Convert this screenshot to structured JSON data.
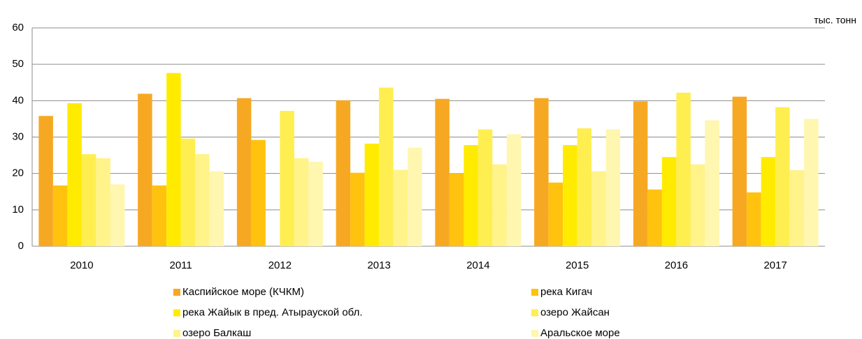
{
  "chart_data": {
    "type": "bar",
    "y_unit_label": "тыс. тонн",
    "categories": [
      "2010",
      "2011",
      "2012",
      "2013",
      "2014",
      "2015",
      "2016",
      "2017"
    ],
    "series": [
      {
        "name": "Каспийское море (КЧКМ)",
        "color": "#F7A822",
        "values": [
          35.8,
          41.9,
          40.7,
          40.1,
          40.5,
          40.7,
          39.8,
          41.1
        ]
      },
      {
        "name": "река Кигач",
        "color": "#FFC20E",
        "values": [
          16.7,
          16.7,
          29.2,
          20.2,
          20.1,
          17.5,
          15.6,
          14.8
        ]
      },
      {
        "name": "река Жайык в пред. Атырауской обл.",
        "color": "#FFEB00",
        "values": [
          39.3,
          47.6,
          null,
          28.2,
          27.8,
          27.8,
          24.5,
          24.5
        ]
      },
      {
        "name": "озеро Жайсан",
        "color": "#FFEE50",
        "values": [
          25.3,
          29.6,
          37.2,
          43.6,
          32.1,
          32.4,
          42.2,
          38.2
        ]
      },
      {
        "name": "озеро Балкаш",
        "color": "#FFF38A",
        "values": [
          24.2,
          25.3,
          24.2,
          21.0,
          22.5,
          20.6,
          22.5,
          20.9
        ]
      },
      {
        "name": "Аральское море",
        "color": "#FFF6B0",
        "values": [
          17.0,
          20.6,
          23.2,
          27.1,
          30.8,
          32.1,
          34.6,
          35.0
        ]
      }
    ],
    "ylim": [
      0,
      60
    ],
    "yticks": [
      0,
      10,
      20,
      30,
      40,
      50,
      60
    ],
    "grid": true
  }
}
